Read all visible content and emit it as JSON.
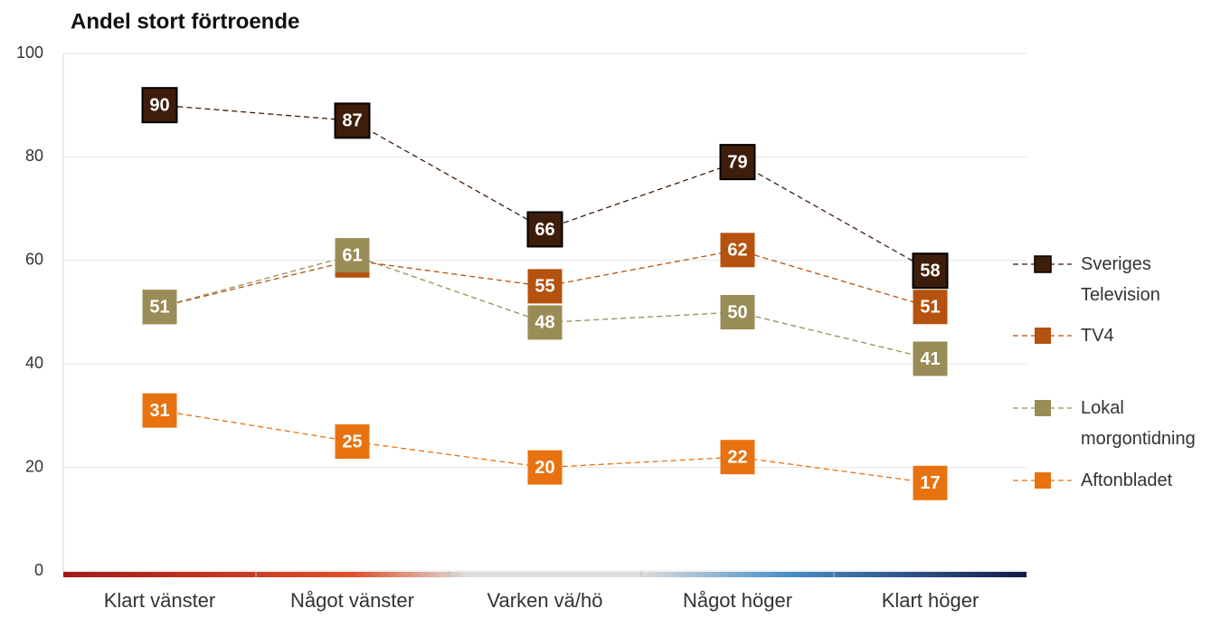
{
  "chart_data": {
    "type": "line",
    "title": "Andel stort förtroende",
    "categories": [
      "Klart vänster",
      "Något vänster",
      "Varken vä/hö",
      "Något höger",
      "Klart höger"
    ],
    "series": [
      {
        "name": "Sveriges Television",
        "color": "#3f1d0b",
        "values": [
          90,
          87,
          66,
          79,
          58
        ]
      },
      {
        "name": "TV4",
        "color": "#b5520f",
        "values": [
          51,
          60,
          55,
          62,
          51
        ]
      },
      {
        "name": "Lokal morgontidning",
        "color": "#9a8c56",
        "values": [
          51,
          61,
          48,
          50,
          41
        ]
      },
      {
        "name": "Aftonbladet",
        "color": "#e8720f",
        "values": [
          31,
          25,
          20,
          22,
          17
        ]
      }
    ],
    "ylim": [
      0,
      100
    ],
    "yticks": [
      0,
      20,
      40,
      60,
      80,
      100
    ],
    "grid": true,
    "legend": "right"
  }
}
